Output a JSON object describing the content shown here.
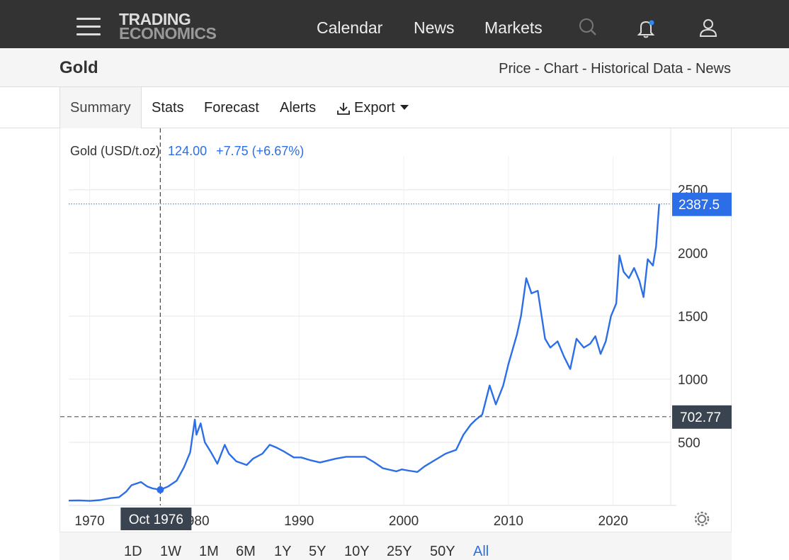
{
  "header": {
    "logo_line1": "TRADING",
    "logo_line2": "ECONOMICS",
    "nav": [
      "Calendar",
      "News",
      "Markets"
    ],
    "icons": [
      "menu-icon",
      "search-icon",
      "bell-icon",
      "user-icon"
    ]
  },
  "title": {
    "text": "Gold",
    "links": [
      "Price",
      "Chart",
      "Historical Data",
      "News"
    ],
    "separator": " - "
  },
  "tabs": [
    "Summary",
    "Stats",
    "Forecast",
    "Alerts",
    "Export"
  ],
  "chart_info": {
    "instrument": "Gold (USD/t.oz)",
    "value": "124.00",
    "change": "+7.75 (+6.67%)"
  },
  "last_price_label": "2387.5",
  "crosshair": {
    "date_label": "Oct 1976",
    "price_label": "702.77",
    "x_year": 1976.75,
    "y_value": 702.77,
    "point_value": 124.0
  },
  "ranges": [
    "1D",
    "1W",
    "1M",
    "6M",
    "1Y",
    "5Y",
    "10Y",
    "25Y",
    "50Y",
    "All"
  ],
  "active_range": "All",
  "colors": {
    "line": "#2b6ee8",
    "accent": "#2b6ee8",
    "label_dark": "#3a4451"
  },
  "chart_data": {
    "type": "line",
    "series": [
      {
        "name": "Gold (USD/t.oz)",
        "x": [
          1968.0,
          1969.0,
          1970.0,
          1971.0,
          1972.0,
          1972.8,
          1973.5,
          1974.0,
          1974.9,
          1975.5,
          1976.0,
          1976.75,
          1977.5,
          1978.3,
          1979.0,
          1979.6,
          1980.05,
          1980.2,
          1980.6,
          1981.0,
          1981.6,
          1982.2,
          1982.9,
          1983.3,
          1984.0,
          1985.0,
          1985.6,
          1986.5,
          1987.2,
          1987.8,
          1988.5,
          1989.5,
          1990.2,
          1991.0,
          1992.0,
          1993.5,
          1994.5,
          1995.5,
          1996.3,
          1997.2,
          1998.0,
          1999.3,
          1999.8,
          2000.5,
          2001.3,
          2002.0,
          2003.0,
          2004.0,
          2005.0,
          2005.7,
          2006.4,
          2006.9,
          2007.5,
          2008.2,
          2008.8,
          2009.5,
          2010.0,
          2010.8,
          2011.2,
          2011.7,
          2012.2,
          2012.8,
          2013.5,
          2014.0,
          2014.7,
          2015.3,
          2015.9,
          2016.5,
          2017.2,
          2017.8,
          2018.3,
          2018.8,
          2019.3,
          2019.8,
          2020.3,
          2020.6,
          2021.0,
          2021.5,
          2022.0,
          2022.5,
          2022.9,
          2023.3,
          2023.8,
          2024.1,
          2024.4
        ],
        "y": [
          38,
          40,
          36,
          42,
          58,
          65,
          110,
          160,
          185,
          150,
          135,
          124,
          150,
          195,
          300,
          420,
          680,
          560,
          650,
          500,
          420,
          330,
          480,
          410,
          350,
          320,
          370,
          410,
          480,
          460,
          430,
          380,
          380,
          360,
          340,
          370,
          385,
          385,
          385,
          340,
          295,
          270,
          285,
          275,
          265,
          310,
          360,
          410,
          440,
          560,
          640,
          680,
          720,
          950,
          800,
          950,
          1120,
          1350,
          1500,
          1800,
          1680,
          1700,
          1320,
          1250,
          1300,
          1180,
          1080,
          1320,
          1250,
          1280,
          1340,
          1200,
          1300,
          1500,
          1600,
          1980,
          1850,
          1800,
          1880,
          1780,
          1650,
          1950,
          1900,
          2050,
          2387.5
        ]
      }
    ],
    "xlim": [
      1968,
      2025.5
    ],
    "ylim": [
      0,
      2650
    ],
    "x_ticks": [
      1970,
      1980,
      1990,
      2000,
      2010,
      2020
    ],
    "y_ticks": [
      500,
      1000,
      1500,
      2000,
      2500
    ],
    "grid": true
  }
}
